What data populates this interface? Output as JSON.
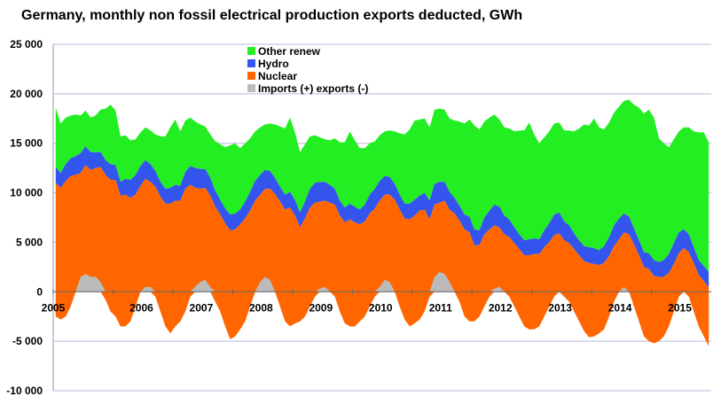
{
  "chart_data": {
    "type": "area",
    "title": "Germany, monthly non fossil electrical production exports deducted, GWh",
    "xlabel": "",
    "ylabel": "",
    "ylim": [
      -10000,
      25000
    ],
    "yticks": [
      25000,
      20000,
      15000,
      10000,
      5000,
      0,
      -5000,
      -10000
    ],
    "ytick_labels": [
      "25 000",
      "20 000",
      "15 000",
      "10 000",
      "5 000",
      "0",
      "-5 000",
      "-10 000"
    ],
    "xlim": [
      2005,
      2016
    ],
    "xticks": [
      2005,
      2006,
      2007,
      2008,
      2009,
      2010,
      2011,
      2012,
      2013,
      2014,
      2015
    ],
    "xtick_labels": [
      "2005",
      "2006",
      "2007",
      "2008",
      "2009",
      "2010",
      "2011",
      "2012",
      "2013",
      "2014",
      "2015"
    ],
    "grid": "horizontal",
    "legend": "top-center",
    "stack_order": [
      "Imports (+) exports (-)",
      "Nuclear",
      "Hydro",
      "Other renew"
    ],
    "series": [
      {
        "name": "Other renew",
        "color": "#22ee22",
        "values": [
          6000,
          5000,
          4700,
          4300,
          4200,
          3800,
          3600,
          3500,
          3700,
          4300,
          5200,
          6000,
          5500,
          4600,
          4400,
          4000,
          3600,
          3400,
          3300,
          3400,
          3700,
          4600,
          5300,
          6100,
          6600,
          5500,
          5200,
          4900,
          4700,
          4500,
          4300,
          4400,
          5000,
          5600,
          6200,
          7000,
          7100,
          6200,
          5900,
          5400,
          5000,
          4800,
          4600,
          4800,
          5400,
          6100,
          6700,
          7500,
          6800,
          6100,
          5800,
          5300,
          4800,
          4500,
          4300,
          4500,
          5100,
          5900,
          6600,
          7300,
          6700,
          6200,
          5700,
          5200,
          4800,
          4600,
          4500,
          4700,
          5300,
          6200,
          7000,
          7500,
          8000,
          7700,
          7500,
          7400,
          7500,
          7400,
          7300,
          7400,
          7800,
          8500,
          9200,
          9800,
          10500,
          10200,
          9700,
          9400,
          9100,
          8800,
          8900,
          9200,
          9700,
          10500,
          11100,
          11800,
          10500,
          9700,
          9400,
          9300,
          9200,
          9100,
          9200,
          9600,
          10300,
          11300,
          12300,
          12300,
          13100,
          12400,
          11800,
          11600,
          11400,
          11300,
          11400,
          11800,
          12500,
          13400,
          14000,
          14500,
          14400,
          12500,
          11800,
          10800,
          10500,
          10200,
          10300,
          10800,
          11700,
          12900,
          13500,
          13100
        ]
      },
      {
        "name": "Hydro",
        "color": "#3355ee",
        "values": [
          1600,
          1500,
          1700,
          1800,
          1900,
          2000,
          1900,
          1800,
          1600,
          1500,
          1500,
          1600,
          1500,
          1400,
          1600,
          1800,
          2000,
          2000,
          1900,
          1800,
          1600,
          1500,
          1500,
          1600,
          1600,
          1500,
          1700,
          1900,
          2000,
          2000,
          1900,
          1800,
          1600,
          1500,
          1500,
          1600,
          1600,
          1500,
          1700,
          1900,
          2000,
          2000,
          1900,
          1800,
          1600,
          1500,
          1500,
          1600,
          1600,
          1500,
          1700,
          1900,
          2000,
          2000,
          1900,
          1800,
          1600,
          1500,
          1500,
          1600,
          1600,
          1500,
          1700,
          1900,
          2000,
          2000,
          1900,
          1800,
          1600,
          1500,
          1500,
          1600,
          1600,
          1500,
          1700,
          1900,
          2100,
          2100,
          1900,
          1800,
          1600,
          1500,
          1500,
          1600,
          1600,
          1500,
          1700,
          1900,
          2100,
          2100,
          1900,
          1800,
          1600,
          1500,
          1500,
          1600,
          1600,
          1500,
          1700,
          1900,
          2100,
          2100,
          1900,
          1800,
          1600,
          1500,
          1500,
          1600,
          1600,
          1500,
          1700,
          1900,
          2100,
          2100,
          1900,
          1800,
          1600,
          1500,
          1500,
          1600,
          1600,
          1500,
          1700,
          1900,
          2100,
          2100,
          1900,
          1800,
          1600,
          1500,
          1500,
          1600
        ]
      },
      {
        "name": "Nuclear",
        "color": "#ff6600",
        "values": [
          13500,
          13300,
          13700,
          13200,
          11800,
          10500,
          11000,
          10800,
          11000,
          11600,
          12600,
          13300,
          13800,
          13200,
          13300,
          12500,
          11300,
          10700,
          10900,
          10600,
          11100,
          11600,
          12400,
          13100,
          12700,
          12200,
          12400,
          11300,
          10000,
          9400,
          9300,
          9200,
          9600,
          9800,
          10400,
          11000,
          10800,
          10600,
          10400,
          9700,
          9200,
          8800,
          8900,
          9200,
          9900,
          10600,
          11300,
          12000,
          10900,
          9500,
          9900,
          10000,
          9500,
          8800,
          8700,
          9000,
          9300,
          9700,
          10200,
          10800,
          10500,
          9800,
          9600,
          9400,
          8900,
          8700,
          8600,
          8800,
          9300,
          9800,
          10200,
          10800,
          10900,
          11000,
          10300,
          7800,
          7300,
          7000,
          7400,
          7300,
          7900,
          8200,
          8800,
          9000,
          7700,
          7200,
          7300,
          6800,
          6400,
          6000,
          5800,
          6000,
          6400,
          6800,
          7200,
          7500,
          7600,
          7300,
          7000,
          6500,
          6200,
          5900,
          5700,
          5900,
          6300,
          6700,
          7100,
          7500,
          7300,
          6900,
          6700,
          6100,
          5600,
          5300,
          5500,
          5800,
          6300,
          6700,
          7000,
          7300,
          6800,
          6500,
          6000,
          5400,
          4800,
          4400,
          4400,
          4500,
          4900,
          5200,
          5600,
          5900
        ]
      },
      {
        "name": "Imports (+) exports (-)",
        "color": "#bbbbbb",
        "values": [
          -2500,
          -2800,
          -2500,
          -1500,
          0,
          1500,
          1800,
          1500,
          1500,
          1000,
          -800,
          -2000,
          -2500,
          -3500,
          -3500,
          -3000,
          -1500,
          0,
          500,
          500,
          -500,
          -2000,
          -3500,
          -4200,
          -3500,
          -3000,
          -2000,
          -500,
          500,
          1000,
          1200,
          500,
          -1000,
          -2000,
          -3500,
          -4800,
          -4500,
          -3800,
          -3000,
          -1500,
          0,
          1000,
          1500,
          1200,
          0,
          -1500,
          -3000,
          -3500,
          -3200,
          -3000,
          -2500,
          -1500,
          -500,
          300,
          500,
          0,
          -500,
          -2000,
          -3200,
          -3500,
          -3500,
          -3000,
          -2500,
          -1500,
          -500,
          500,
          1200,
          1000,
          0,
          -1500,
          -2800,
          -3500,
          -3200,
          -2800,
          -2000,
          -500,
          1500,
          2000,
          1800,
          1000,
          0,
          -1000,
          -2500,
          -3000,
          -3000,
          -2500,
          -1500,
          -500,
          300,
          500,
          0,
          -500,
          -1500,
          -2500,
          -3500,
          -3800,
          -3800,
          -3500,
          -2500,
          -1500,
          -500,
          0,
          -500,
          -1000,
          -2000,
          -3000,
          -4000,
          -4600,
          -4500,
          -4200,
          -3800,
          -2500,
          -1000,
          0,
          500,
          0,
          -1500,
          -3000,
          -4500,
          -5000,
          -5200,
          -5000,
          -4500,
          -3500,
          -2000,
          -500,
          0,
          -500,
          -2000,
          -3500,
          -4500,
          -5500
        ]
      }
    ]
  }
}
